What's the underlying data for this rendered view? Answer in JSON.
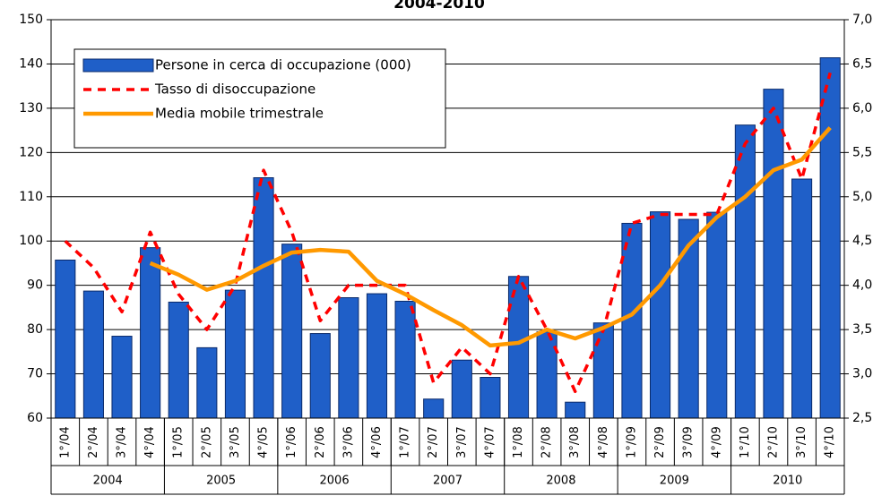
{
  "chart_data": {
    "type": "bar-line",
    "title": "2004-2010",
    "categories": [
      "1°/04",
      "2°/04",
      "3°/04",
      "4°/04",
      "1°/05",
      "2°/05",
      "3°/05",
      "4°/05",
      "1°/06",
      "2°/06",
      "3°/06",
      "4°/06",
      "1°/07",
      "2°/07",
      "3°/07",
      "4°/07",
      "1°/08",
      "2°/08",
      "3°/08",
      "4°/08",
      "1°/09",
      "2°/09",
      "3°/09",
      "4°/09",
      "1°/10",
      "2°/10",
      "3°/10",
      "4°/10"
    ],
    "year_groups": [
      "2004",
      "2005",
      "2006",
      "2007",
      "2008",
      "2009",
      "2010"
    ],
    "series": [
      {
        "name": "Persone in cerca di occupazione (000)",
        "type": "bar",
        "color": "#1f5fc8",
        "values": [
          95.7,
          88.7,
          78.5,
          98.5,
          86.2,
          75.9,
          88.9,
          114.3,
          99.3,
          79.1,
          87.2,
          88.1,
          86.4,
          64.3,
          73.1,
          69.2,
          92.0,
          79.5,
          63.6,
          81.5,
          104.0,
          106.6,
          104.9,
          106.5,
          126.2,
          134.3,
          114.0,
          141.4
        ]
      },
      {
        "name": "Tasso di disoccupazione",
        "type": "dashed-line",
        "axis": "y2",
        "color": "#ff0000",
        "values": [
          4.5,
          4.2,
          3.7,
          4.6,
          3.9,
          3.5,
          4.0,
          5.3,
          4.6,
          3.6,
          4.0,
          4.0,
          4.0,
          2.9,
          3.3,
          3.0,
          4.1,
          3.5,
          2.8,
          3.5,
          4.7,
          4.8,
          4.8,
          4.8,
          5.6,
          6.0,
          5.2,
          6.4
        ]
      },
      {
        "name": "Media mobile trimestrale",
        "type": "line",
        "axis": "y2",
        "color": "#ff9900",
        "values": [
          null,
          null,
          null,
          4.25,
          4.12,
          3.95,
          4.05,
          4.22,
          4.37,
          4.4,
          4.38,
          4.05,
          3.9,
          3.72,
          3.55,
          3.32,
          3.35,
          3.5,
          3.4,
          3.52,
          3.67,
          4.0,
          4.45,
          4.77,
          5.0,
          5.3,
          5.42,
          5.78
        ]
      }
    ],
    "ylim": [
      60,
      150
    ],
    "yticks": [
      60,
      70,
      80,
      90,
      100,
      110,
      120,
      130,
      140,
      150
    ],
    "y2lim": [
      2.5,
      7.0
    ],
    "y2ticks": [
      {
        "value": 2.5,
        "label": "2,5"
      },
      {
        "value": 3.0,
        "label": "3,0"
      },
      {
        "value": 3.5,
        "label": "3,5"
      },
      {
        "value": 4.0,
        "label": "4,0"
      },
      {
        "value": 4.5,
        "label": "4,5"
      },
      {
        "value": 5.0,
        "label": "5,0"
      },
      {
        "value": 5.5,
        "label": "5,5"
      },
      {
        "value": 6.0,
        "label": "6,0"
      },
      {
        "value": 6.5,
        "label": "6,5"
      },
      {
        "value": 7.0,
        "label": "7,0"
      }
    ],
    "grid": true,
    "legend": "top-left"
  }
}
